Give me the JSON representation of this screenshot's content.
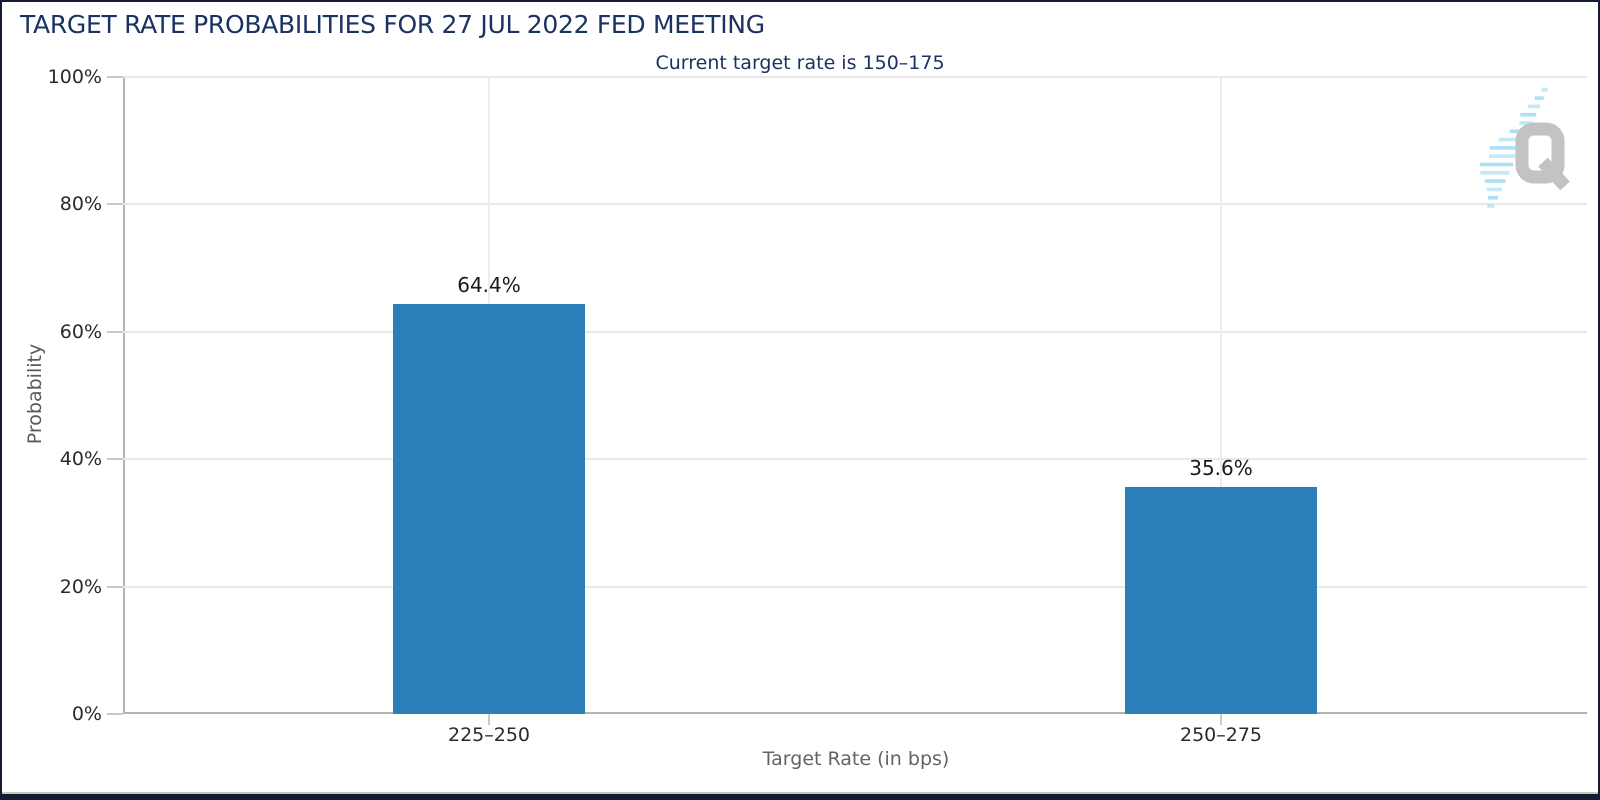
{
  "header": {
    "title": "TARGET RATE PROBABILITIES FOR 27 JUL 2022 FED MEETING",
    "subtitle": "Current target rate is 150–175"
  },
  "watermark": {
    "letter": "Q",
    "letter_color": "#c3c3c3",
    "stripe_color": "#a9def5"
  },
  "chart_data": {
    "type": "bar",
    "title": "TARGET RATE PROBABILITIES FOR 27 JUL 2022 FED MEETING",
    "subtitle": "Current target rate is 150–175",
    "categories": [
      "225–250",
      "250–275"
    ],
    "values": [
      64.4,
      35.6
    ],
    "value_labels": [
      "64.4%",
      "35.6%"
    ],
    "xlabel": "Target Rate (in bps)",
    "ylabel": "Probability",
    "ylim": [
      0,
      100
    ],
    "yticks": [
      0,
      20,
      40,
      60,
      80,
      100
    ],
    "ytick_labels": [
      "0%",
      "20%",
      "40%",
      "60%",
      "80%",
      "100%"
    ],
    "grid": true,
    "legend": false,
    "colors": {
      "bar": "#2a7fb8",
      "title": "#1c3260",
      "grid": "#e8e8e8",
      "axis": "#b3b3b3",
      "tick_label": "#2b2b2b",
      "axis_title": "#5f5f5f",
      "value_label": "#1a1a1a"
    }
  }
}
